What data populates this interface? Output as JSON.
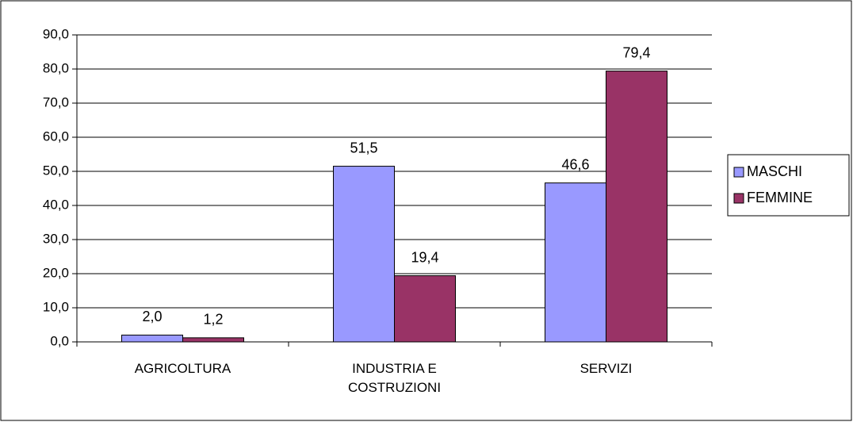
{
  "chart_data": {
    "type": "bar",
    "categories": [
      "AGRICOLTURA",
      "INDUSTRIA E COSTRUZIONI",
      "SERVIZI"
    ],
    "series": [
      {
        "name": "MASCHI",
        "color": "#9999ff",
        "values": [
          2.0,
          51.5,
          46.6
        ],
        "value_labels": [
          "2,0",
          "51,5",
          "46,6"
        ]
      },
      {
        "name": "FEMMINE",
        "color": "#993366",
        "values": [
          1.2,
          19.4,
          79.4
        ],
        "value_labels": [
          "1,2",
          "19,4",
          "79,4"
        ]
      }
    ],
    "ylim": [
      0,
      90
    ],
    "yticks": [
      {
        "value": 0,
        "label": "0,0"
      },
      {
        "value": 10,
        "label": "10,0"
      },
      {
        "value": 20,
        "label": "20,0"
      },
      {
        "value": 30,
        "label": "30,0"
      },
      {
        "value": 40,
        "label": "40,0"
      },
      {
        "value": 50,
        "label": "50,0"
      },
      {
        "value": 60,
        "label": "60,0"
      },
      {
        "value": 70,
        "label": "70,0"
      },
      {
        "value": 80,
        "label": "80,0"
      },
      {
        "value": 90,
        "label": "90,0"
      }
    ],
    "grid": true,
    "legend": "right"
  }
}
